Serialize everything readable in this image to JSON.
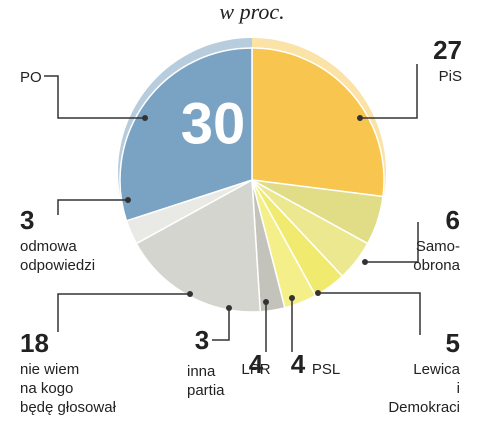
{
  "chart_data": {
    "type": "pie",
    "title": "w proc.",
    "categories": [
      [
        "PiS"
      ],
      [
        "Samo-",
        "obrona"
      ],
      [
        "Lewica",
        "i",
        "Demokraci"
      ],
      [
        "PSL"
      ],
      [
        "LPR"
      ],
      [
        "inna",
        "partia"
      ],
      [
        "nie wiem",
        "na kogo",
        "będę głosował"
      ],
      [
        "odmowa",
        "odpowiedzi"
      ],
      [
        "PO"
      ]
    ],
    "values": [
      27,
      6,
      5,
      4,
      4,
      3,
      18,
      3,
      30
    ],
    "colors": [
      "#f8c64f",
      "#e0dd86",
      "#ebe88f",
      "#f0ea6e",
      "#f5ef8a",
      "#c4c3bb",
      "#d5d5cf",
      "#e9e9e5",
      "#7aa2c2"
    ]
  }
}
